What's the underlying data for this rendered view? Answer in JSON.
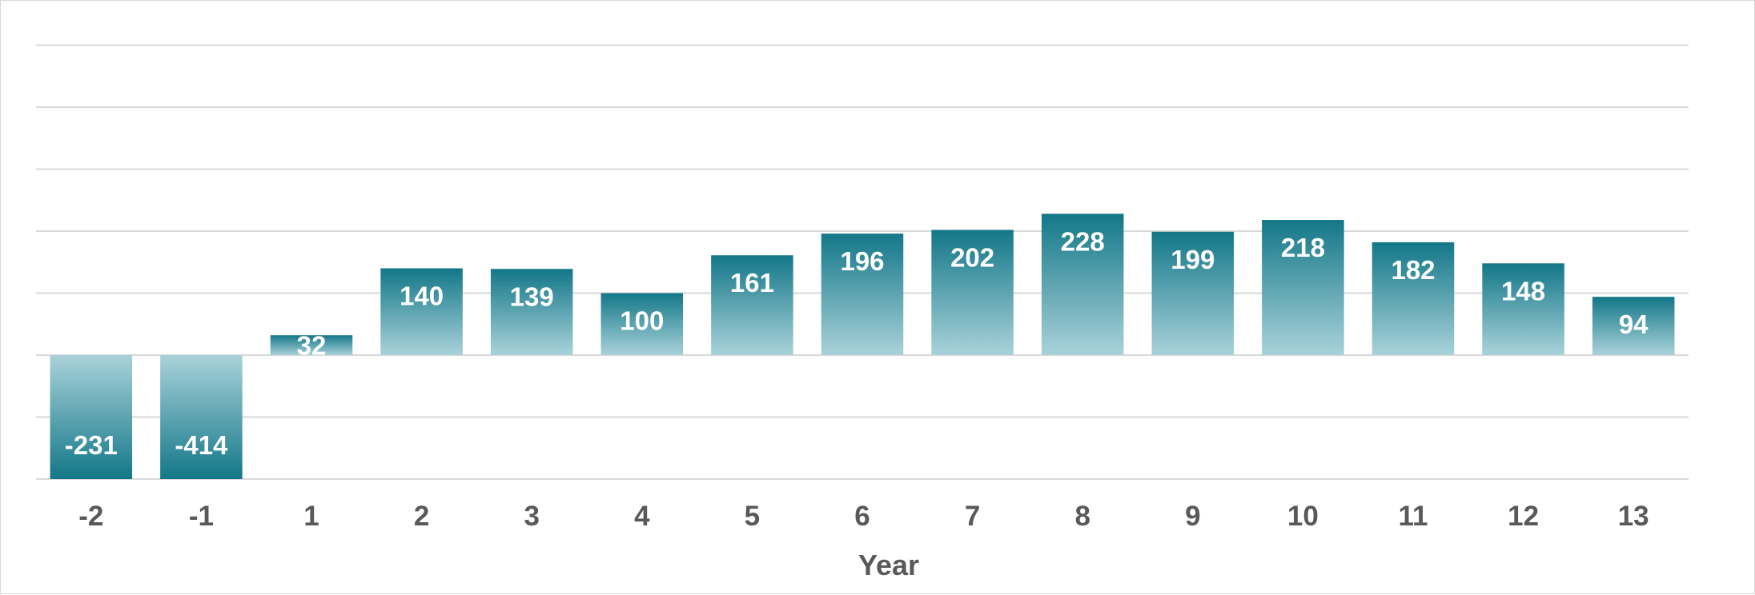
{
  "chart_data": {
    "type": "bar",
    "title": "",
    "xlabel": "Year",
    "ylabel": "",
    "categories": [
      "-2",
      "-1",
      "1",
      "2",
      "3",
      "4",
      "5",
      "6",
      "7",
      "8",
      "9",
      "10",
      "11",
      "12",
      "13"
    ],
    "values": [
      -231,
      -414,
      32,
      140,
      139,
      100,
      161,
      196,
      202,
      228,
      199,
      218,
      182,
      148,
      94
    ],
    "grid": true,
    "legend": "none",
    "colors": {
      "bar_dark": "#137788",
      "bar_light": "#a9d2da",
      "gridline": "#d9d9d9",
      "tick_text": "#595959",
      "data_label": "#ffffff"
    }
  }
}
